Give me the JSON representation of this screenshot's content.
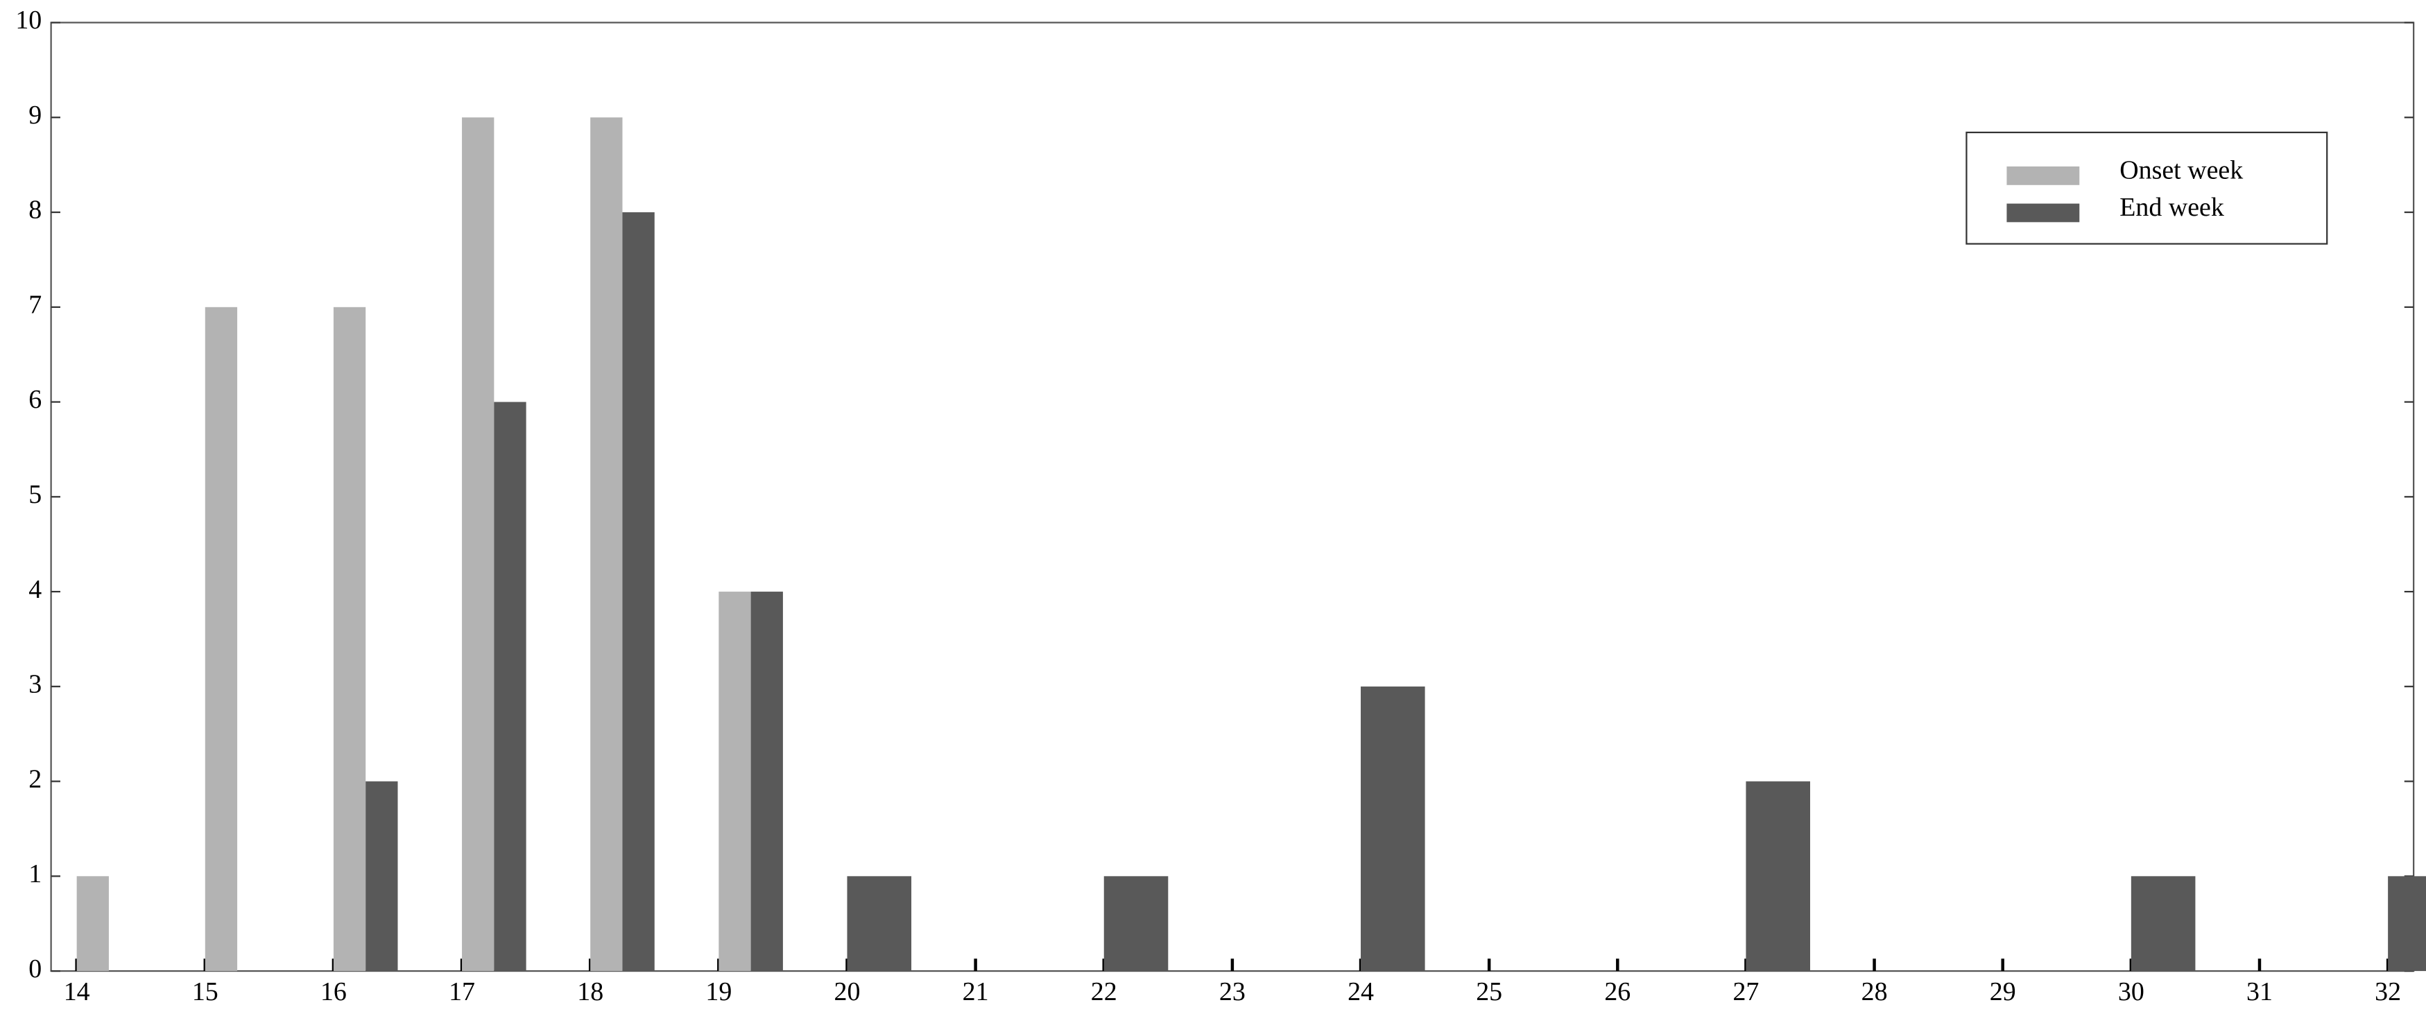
{
  "chart_data": {
    "type": "bar",
    "x": [
      14,
      15,
      16,
      17,
      18,
      19,
      20,
      21,
      22,
      23,
      24,
      25,
      26,
      27,
      28,
      29,
      30,
      31,
      32
    ],
    "series": [
      {
        "name": "Onset week",
        "color": "#b3b3b3",
        "values": [
          1,
          7,
          7,
          9,
          9,
          4,
          0,
          0,
          0,
          0,
          0,
          0,
          0,
          0,
          0,
          0,
          0,
          0,
          0
        ]
      },
      {
        "name": "End week",
        "color": "#595959",
        "values": [
          0,
          0,
          2,
          6,
          8,
          4,
          1,
          0,
          1,
          0,
          3,
          0,
          0,
          2,
          0,
          0,
          1,
          0,
          1
        ]
      }
    ],
    "xlim": [
      13.8,
      32.2
    ],
    "xticks": [
      14,
      15,
      16,
      17,
      18,
      19,
      20,
      21,
      22,
      23,
      24,
      25,
      26,
      27,
      28,
      29,
      30,
      31,
      32
    ],
    "ylim": [
      0,
      10
    ],
    "yticks": [
      0,
      1,
      2,
      3,
      4,
      5,
      6,
      7,
      8,
      9,
      10
    ],
    "legend": "top-right"
  }
}
